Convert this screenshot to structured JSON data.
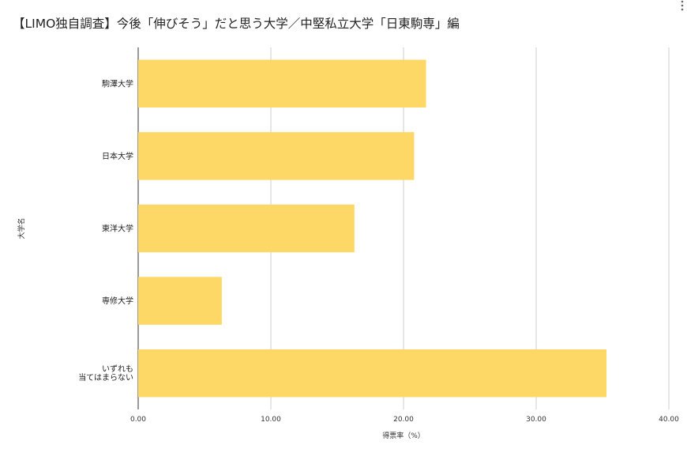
{
  "title": "【LIMO独自調査】今後「伸びそう」だと思う大学／中堅私立大学「日東駒専」編",
  "menu_icon": "more-vert-icon",
  "colors": {
    "bar": "#FDD866",
    "grid": "#CCCCCC",
    "axis": "#333333"
  },
  "chart_data": {
    "type": "bar",
    "orientation": "horizontal",
    "title": "【LIMO独自調査】今後「伸びそう」だと思う大学／中堅私立大学「日東駒専」編",
    "categories": [
      [
        "駒澤大学"
      ],
      [
        "日本大学"
      ],
      [
        "東洋大学"
      ],
      [
        "専修大学"
      ],
      [
        "いずれも",
        "当てはまらない"
      ]
    ],
    "values": [
      21.7,
      20.8,
      16.3,
      6.3,
      35.3
    ],
    "xlabel": "得票率（%）",
    "ylabel": "大学名",
    "xlim": [
      0,
      40
    ],
    "xticks": [
      "0.00",
      "10.00",
      "20.00",
      "30.00",
      "40.00"
    ],
    "grid": true,
    "legend": "none"
  }
}
